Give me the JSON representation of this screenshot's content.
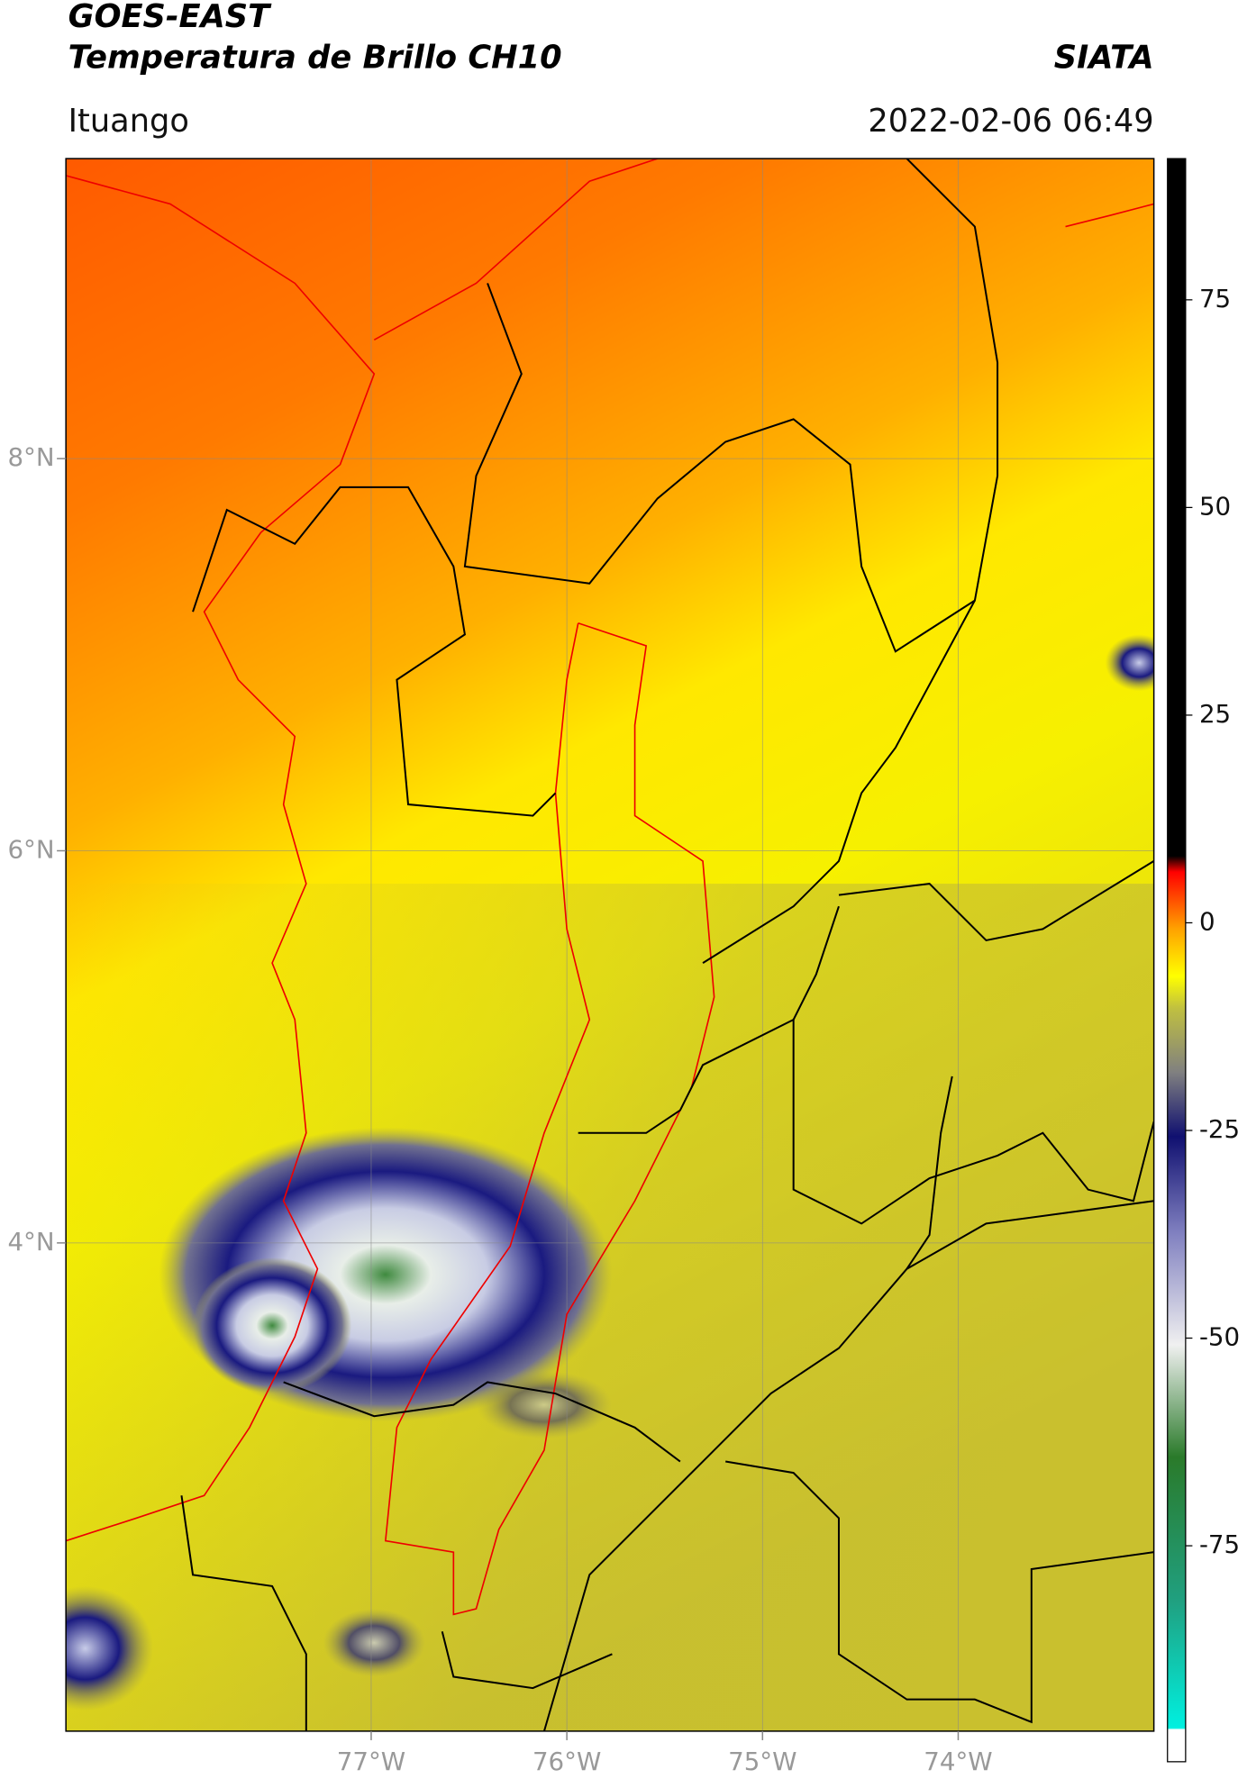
{
  "header": {
    "title": "GOES-EAST",
    "subtitle": "Temperatura de Brillo CH10",
    "agency": "SIATA",
    "location": "Ituango",
    "timestamp": "2022-02-06 06:49"
  },
  "map": {
    "xlim": [
      -78.56,
      -73.0
    ],
    "ylim": [
      1.51,
      9.53
    ],
    "xticks": [
      {
        "value": -77,
        "label": "77°W"
      },
      {
        "value": -76,
        "label": "76°W"
      },
      {
        "value": -75,
        "label": "75°W"
      },
      {
        "value": -74,
        "label": "74°W"
      }
    ],
    "yticks": [
      {
        "value": 8,
        "label": "8°N"
      },
      {
        "value": 6,
        "label": "6°N"
      },
      {
        "value": 4,
        "label": "4°N"
      }
    ],
    "grid": true
  },
  "colorbar": {
    "lim": [
      -101,
      92
    ],
    "ticks": [
      75,
      50,
      25,
      0,
      -25,
      -50,
      -75
    ]
  }
}
